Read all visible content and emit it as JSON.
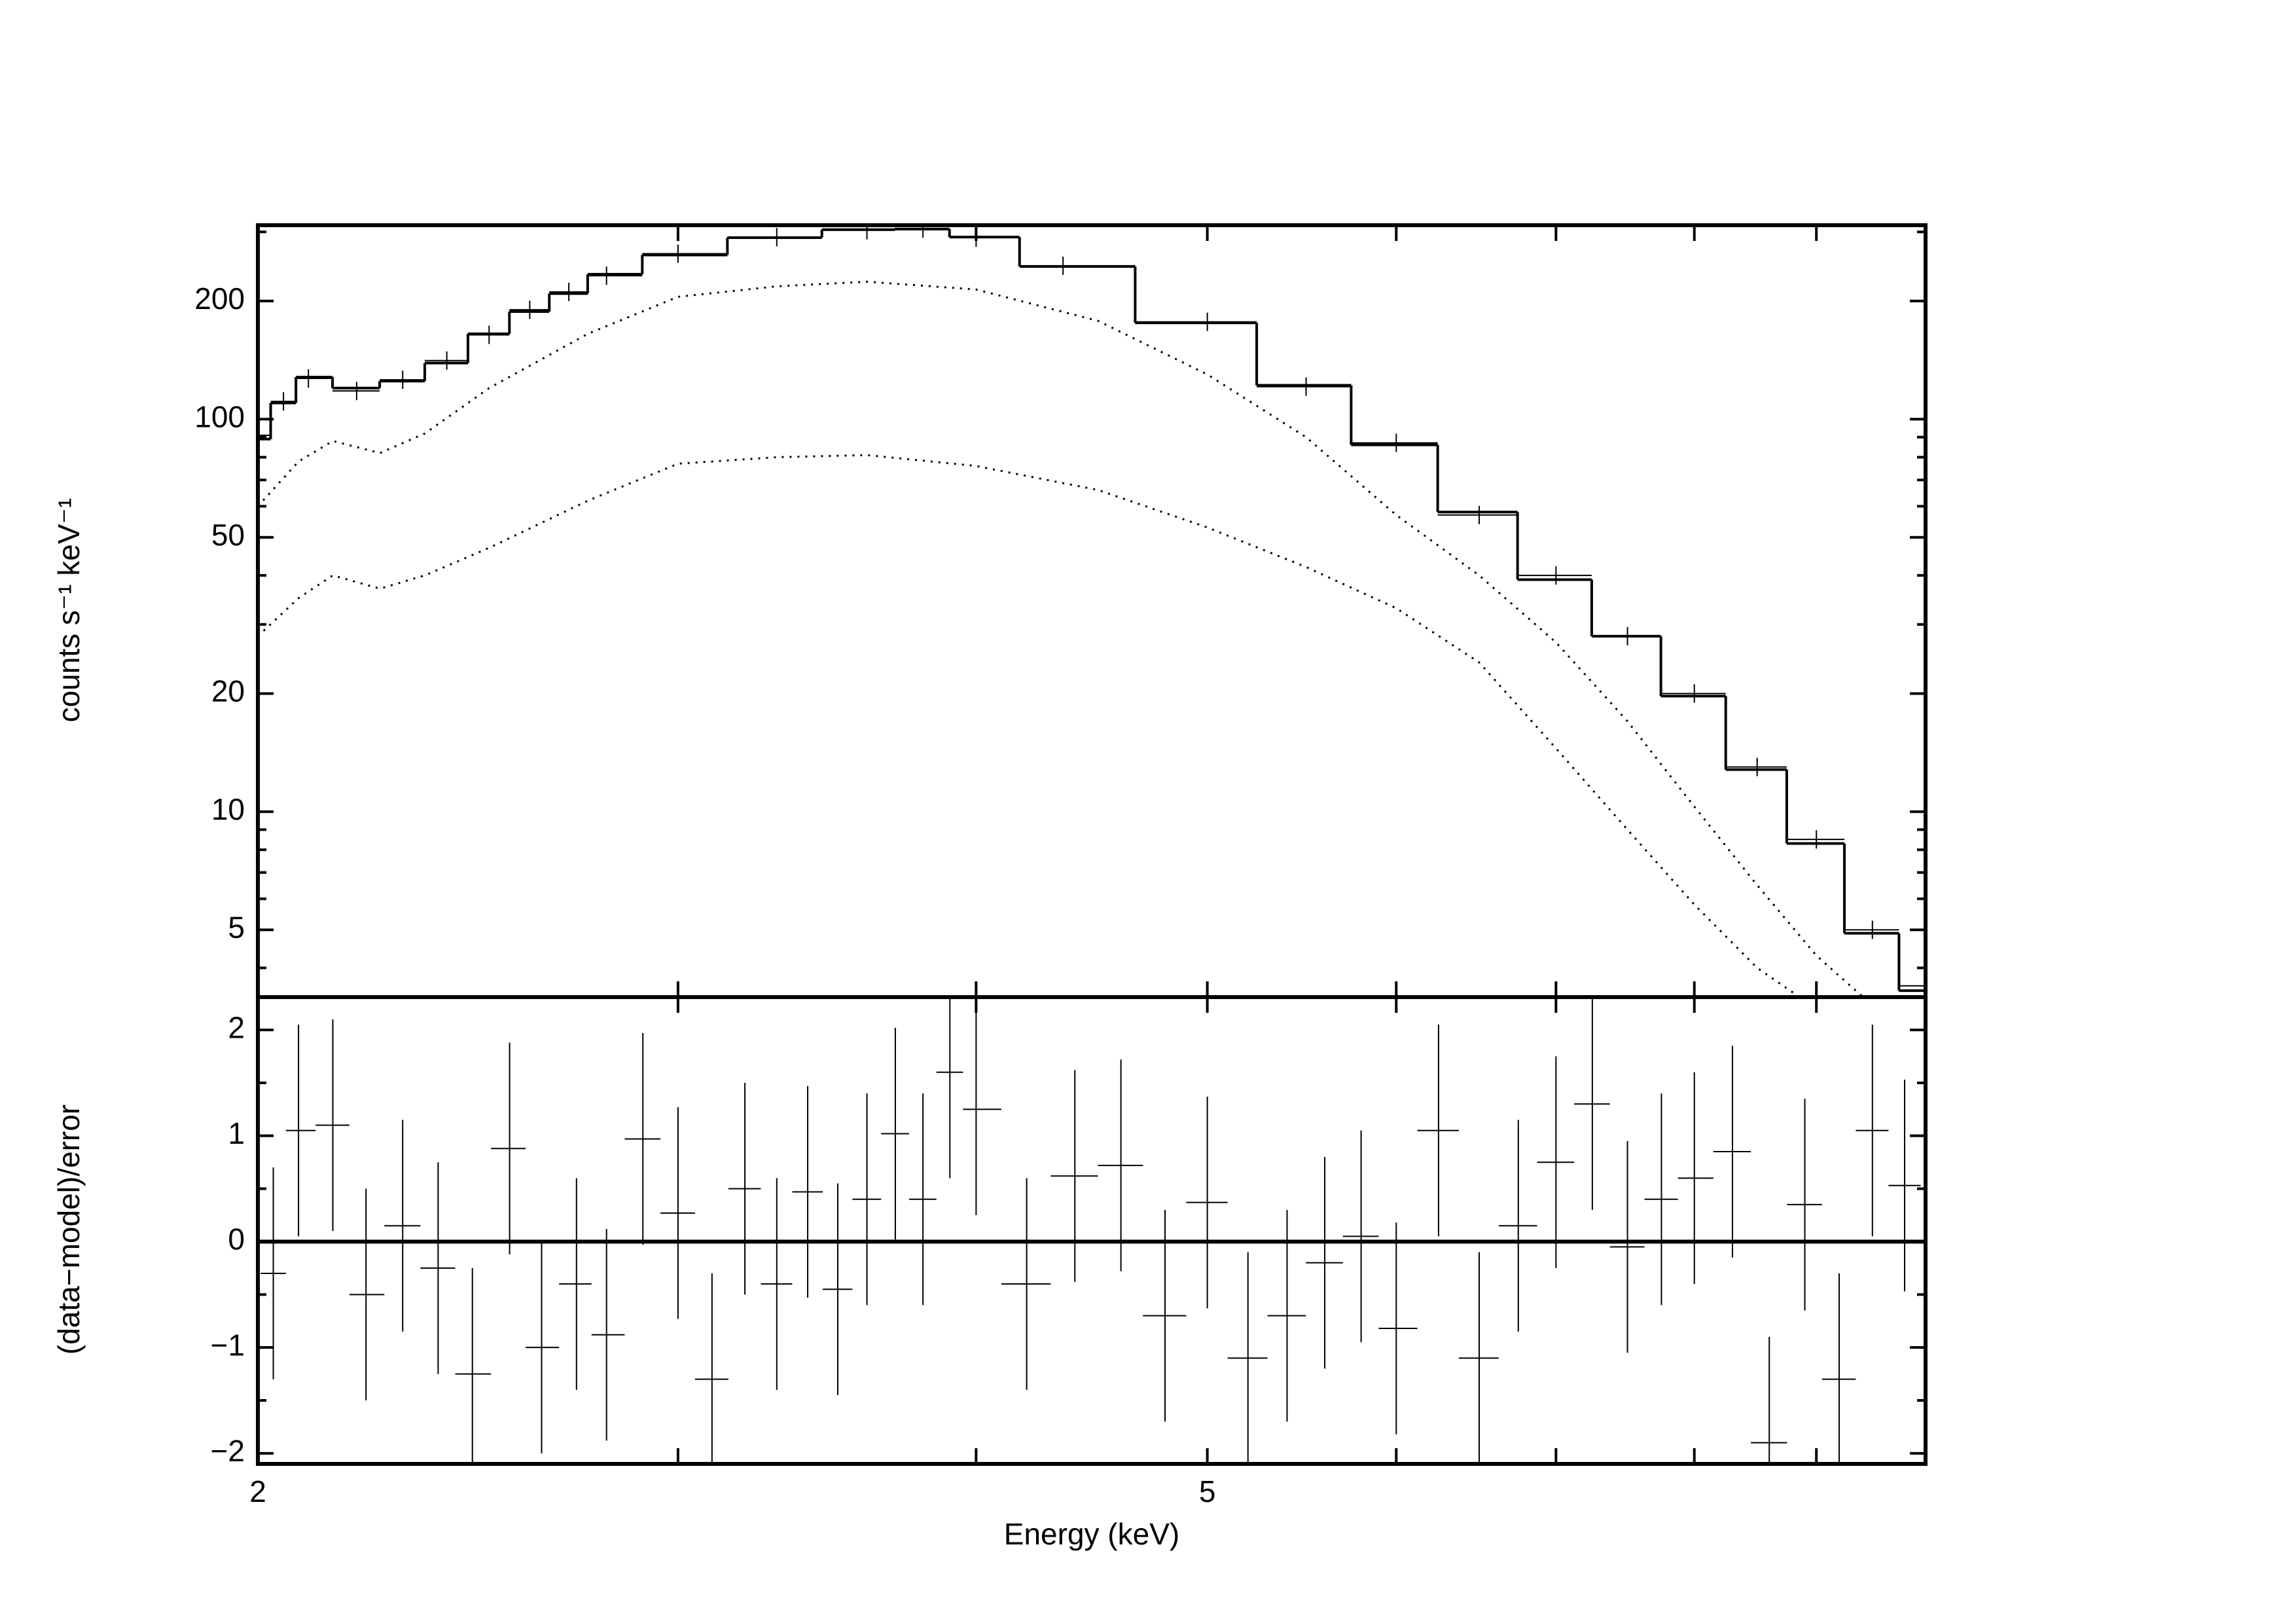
{
  "chart_data": [
    {
      "type": "line",
      "ylabel": "counts s⁻¹ keV⁻¹",
      "log_x": true,
      "log_y": true,
      "xlim": [
        2,
        10
      ],
      "xticks_unlabeled": [
        3,
        4,
        5,
        6,
        7,
        8,
        9
      ],
      "ylim": [
        3.37,
        312
      ],
      "yticks": [
        5,
        10,
        20,
        50,
        100,
        200
      ],
      "yminorticks": [
        4,
        6,
        7,
        8,
        9,
        30,
        40,
        60,
        70,
        80,
        90,
        300
      ],
      "series": [
        {
          "style": "crosses",
          "color": "#000000",
          "x": [
            2.0,
            2.05,
            2.1,
            2.2,
            2.3,
            2.4,
            2.5,
            2.6,
            2.7,
            2.8,
            3.0,
            3.3,
            3.6,
            3.8,
            4.0,
            4.35,
            5.0,
            5.5,
            6.0,
            6.5,
            7.0,
            7.5,
            8.0,
            8.5,
            9.0,
            9.5,
            10
          ],
          "values": [
            91,
            111,
            127,
            118,
            126,
            141,
            164,
            190,
            211,
            232,
            264,
            291,
            303,
            306,
            290,
            246,
            177,
            121,
            87,
            57,
            40,
            28,
            20,
            13,
            8.5,
            5,
            3.6
          ]
        },
        {
          "style": "step",
          "color": "#000000",
          "x": [
            2.0,
            2.05,
            2.1,
            2.2,
            2.3,
            2.4,
            2.5,
            2.6,
            2.7,
            2.8,
            3.0,
            3.3,
            3.6,
            3.8,
            4.0,
            4.35,
            5.0,
            5.5,
            6.0,
            6.5,
            7.0,
            7.5,
            8.0,
            8.5,
            9.0,
            9.5,
            10
          ],
          "values": [
            89,
            110,
            128,
            120,
            125,
            139,
            165,
            188,
            209,
            234,
            262,
            290,
            304,
            305,
            291,
            245,
            176,
            122,
            86,
            58,
            39,
            28,
            19.7,
            12.8,
            8.3,
            4.9,
            3.5
          ]
        },
        {
          "style": "dotted",
          "color": "#000000",
          "x": [
            2,
            2.08,
            2.15,
            2.25,
            2.35,
            2.5,
            2.75,
            3,
            3.3,
            3.6,
            4,
            4.5,
            5,
            5.5,
            6,
            6.5,
            7,
            7.5,
            8,
            8.5,
            9,
            9.4
          ],
          "values": [
            60,
            78,
            88,
            82,
            92,
            120,
            165,
            205,
            218,
            224,
            214,
            178,
            130,
            90,
            57,
            40,
            27,
            17,
            10.3,
            6.5,
            4.3,
            3.4
          ]
        },
        {
          "style": "dotted",
          "color": "#000000",
          "x": [
            2,
            2.08,
            2.15,
            2.25,
            2.35,
            2.5,
            2.75,
            3,
            3.3,
            3.6,
            4,
            4.5,
            5,
            5.5,
            6,
            6.5,
            7,
            7.5,
            8,
            8.5,
            8.9
          ],
          "values": [
            28,
            35,
            40,
            37,
            40,
            47,
            62,
            77,
            80,
            81,
            76,
            66,
            53,
            42,
            33,
            24,
            14.5,
            9,
            5.8,
            4,
            3.3
          ]
        }
      ]
    },
    {
      "type": "errorbar",
      "ylabel": "(data−model)/error",
      "xlabel": "Energy (keV)",
      "log_x": true,
      "log_y": false,
      "xlim": [
        2,
        10
      ],
      "xticks": [
        2,
        5
      ],
      "xticks_unlabeled": [
        3,
        4,
        6,
        7,
        8,
        9
      ],
      "ylim": [
        -2.1,
        2.31
      ],
      "yticks": [
        {
          "value": -2,
          "label": "−2"
        },
        {
          "value": -1,
          "label": "−1"
        },
        0,
        1,
        2
      ],
      "yminorticks": [
        -1.5,
        -0.5,
        0.5,
        1.5
      ],
      "zero_line": true,
      "series": [
        {
          "color": "#000000",
          "x": [
            2.03,
            2.08,
            2.15,
            2.22,
            2.3,
            2.38,
            2.46,
            2.55,
            2.63,
            2.72,
            2.8,
            2.9,
            3.0,
            3.1,
            3.2,
            3.3,
            3.4,
            3.5,
            3.6,
            3.7,
            3.8,
            3.9,
            4.0,
            4.2,
            4.4,
            4.6,
            4.8,
            5.0,
            5.2,
            5.4,
            5.6,
            5.8,
            6.0,
            6.25,
            6.5,
            6.75,
            7.0,
            7.25,
            7.5,
            7.75,
            8.0,
            8.3,
            8.6,
            8.9,
            9.2,
            9.5,
            9.8
          ],
          "values": [
            -0.3,
            1.05,
            1.1,
            -0.5,
            0.15,
            -0.25,
            -1.25,
            0.88,
            -1.0,
            -0.4,
            -0.88,
            0.97,
            0.27,
            -1.3,
            0.5,
            -0.4,
            0.47,
            -0.45,
            0.4,
            1.02,
            0.4,
            1.6,
            1.25,
            -0.4,
            0.62,
            0.72,
            -0.7,
            0.37,
            -1.1,
            -0.7,
            -0.2,
            0.05,
            -0.82,
            1.05,
            -1.1,
            0.15,
            0.75,
            1.3,
            -0.05,
            0.4,
            0.6,
            0.85,
            -1.9,
            0.35,
            -1.3,
            1.05,
            0.53
          ],
          "errors": [
            1,
            1,
            1,
            1,
            1,
            1,
            1,
            1,
            1,
            1,
            1,
            1,
            1,
            1,
            1,
            1,
            1,
            1,
            1,
            1,
            1,
            1,
            1,
            1,
            1,
            1,
            1,
            1,
            1,
            1,
            1,
            1,
            1,
            1,
            1,
            1,
            1,
            1,
            1,
            1,
            1,
            1,
            1,
            1,
            1,
            1,
            1
          ]
        }
      ]
    }
  ]
}
